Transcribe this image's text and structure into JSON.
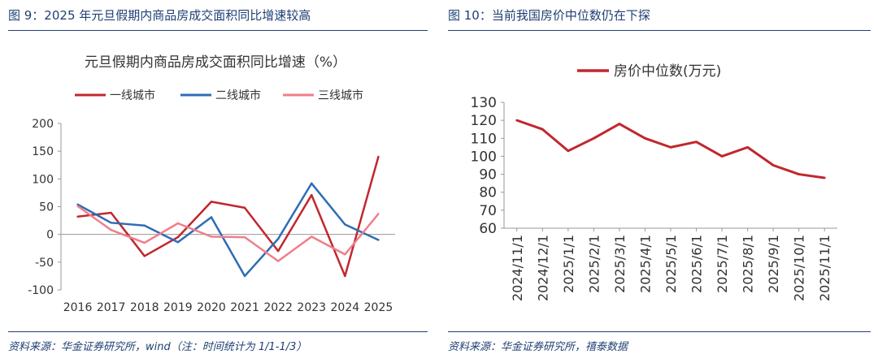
{
  "left_panel": {
    "title": "图 9：2025 年元旦假期内商品房成交面积同比增速较高",
    "source": "资料来源：华金证券研究所，wind（注：时间统计为 1/1-1/3）"
  },
  "right_panel": {
    "title": "图 10：当前我国房价中位数仍在下探",
    "source": "资料来源：华金证券研究所，禧泰数据"
  },
  "chart_data": [
    {
      "type": "line",
      "title": "元旦假期内商品房成交面积同比增速（%）",
      "xlabel": "",
      "ylabel": "",
      "categories": [
        "2016",
        "2017",
        "2018",
        "2019",
        "2020",
        "2021",
        "2022",
        "2023",
        "2024",
        "2025"
      ],
      "ylim": [
        -100,
        200
      ],
      "yticks": [
        -100,
        -50,
        0,
        50,
        100,
        150,
        200
      ],
      "legend_position": "top",
      "series": [
        {
          "name": "一线城市",
          "color": "#c0272d",
          "values": [
            32,
            39,
            -39,
            -5,
            59,
            48,
            -30,
            71,
            -75,
            140
          ]
        },
        {
          "name": "二线城市",
          "color": "#2e6db4",
          "values": [
            54,
            21,
            16,
            -14,
            31,
            -75,
            -8,
            92,
            18,
            -10
          ]
        },
        {
          "name": "三线城市",
          "color": "#f07e8a",
          "values": [
            51,
            8,
            -15,
            20,
            -4,
            -5,
            -48,
            -4,
            -36,
            37
          ]
        }
      ]
    },
    {
      "type": "line",
      "title": "",
      "xlabel": "",
      "ylabel": "",
      "categories": [
        "2024/11/1",
        "2024/12/1",
        "2025/1/1",
        "2025/2/1",
        "2025/3/1",
        "2025/4/1",
        "2025/5/1",
        "2025/6/1",
        "2025/7/1",
        "2025/8/1",
        "2025/9/1",
        "2025/10/1",
        "2025/11/1"
      ],
      "ylim": [
        60,
        130
      ],
      "yticks": [
        60,
        70,
        80,
        90,
        100,
        110,
        120,
        130
      ],
      "legend_position": "top",
      "series": [
        {
          "name": "房价中位数(万元)",
          "color": "#c0272d",
          "values": [
            120,
            115,
            103,
            110,
            118,
            110,
            105,
            108,
            100,
            105,
            95,
            90,
            88
          ]
        }
      ]
    }
  ]
}
